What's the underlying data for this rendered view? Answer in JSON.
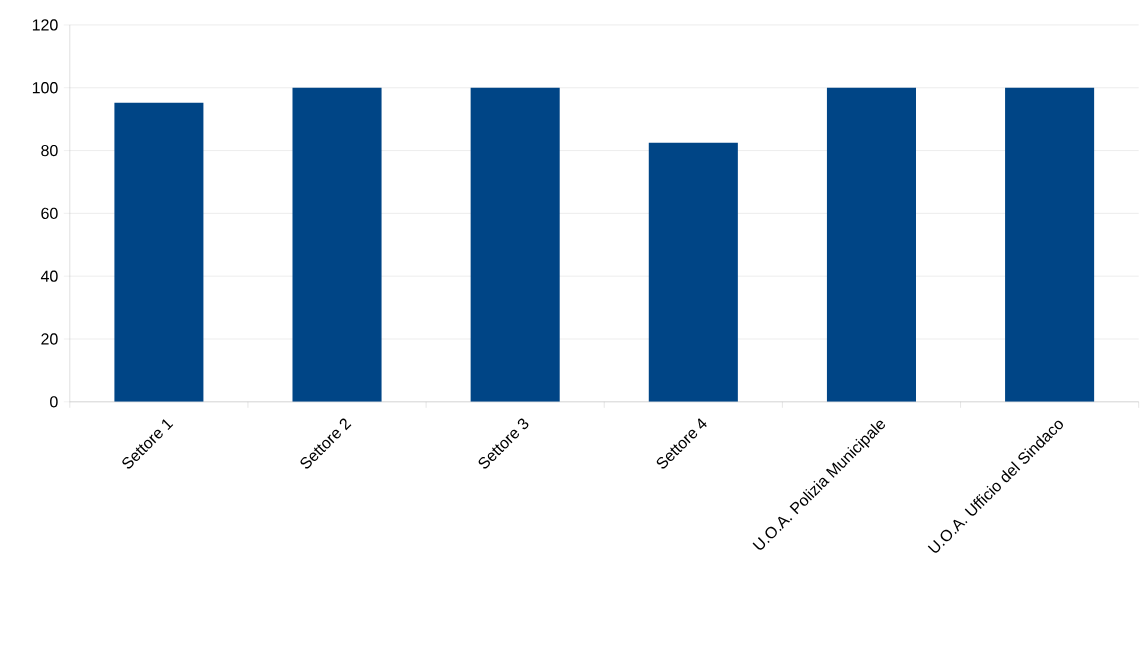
{
  "chart_data": {
    "type": "bar",
    "categories": [
      "Settore 1",
      "Settore 2",
      "Settore 3",
      "Settore 4",
      "U.O.A. Polizia Municipale",
      "U.O.A. Ufficio del Sindaco"
    ],
    "values": [
      95.2,
      100,
      100,
      82.5,
      100,
      100
    ],
    "color": "#004586",
    "ylim": [
      0,
      120
    ],
    "yticks": [
      0,
      20,
      40,
      60,
      80,
      100,
      120
    ],
    "grid": "y"
  }
}
